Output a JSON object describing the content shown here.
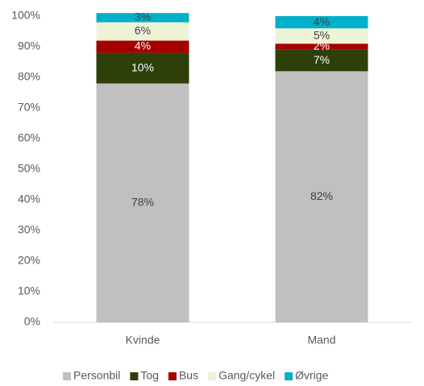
{
  "chart_data": {
    "type": "stacked_bar",
    "categories": [
      "Kvinde",
      "Mand"
    ],
    "series": [
      {
        "name": "Personbil",
        "color": "#c0c0c0",
        "values": [
          78,
          82
        ],
        "value_labels": [
          "78%",
          "82%"
        ]
      },
      {
        "name": "Tog",
        "color": "#2e3f0a",
        "values": [
          10,
          7
        ],
        "value_labels": [
          "10%",
          "7%"
        ]
      },
      {
        "name": "Bus",
        "color": "#a50000",
        "values": [
          4,
          2
        ],
        "value_labels": [
          "4%",
          "2%"
        ]
      },
      {
        "name": "Gang/cykel",
        "color": "#eef3d6",
        "values": [
          6,
          5
        ],
        "value_labels": [
          "6%",
          "5%"
        ]
      },
      {
        "name": "Øvrige",
        "color": "#00b0c8",
        "values": [
          3,
          4
        ],
        "value_labels": [
          "3%",
          "4%"
        ]
      }
    ],
    "ylim": [
      0,
      100
    ],
    "yticks": [
      {
        "value": 0,
        "label": "0%"
      },
      {
        "value": 10,
        "label": "10%"
      },
      {
        "value": 20,
        "label": "20%"
      },
      {
        "value": 30,
        "label": "30%"
      },
      {
        "value": 40,
        "label": "40%"
      },
      {
        "value": 50,
        "label": "50%"
      },
      {
        "value": 60,
        "label": "60%"
      },
      {
        "value": 70,
        "label": "70%"
      },
      {
        "value": 80,
        "label": "80%"
      },
      {
        "value": 90,
        "label": "90%"
      },
      {
        "value": 100,
        "label": "100%"
      }
    ],
    "legend": "bottom",
    "grid": false
  }
}
